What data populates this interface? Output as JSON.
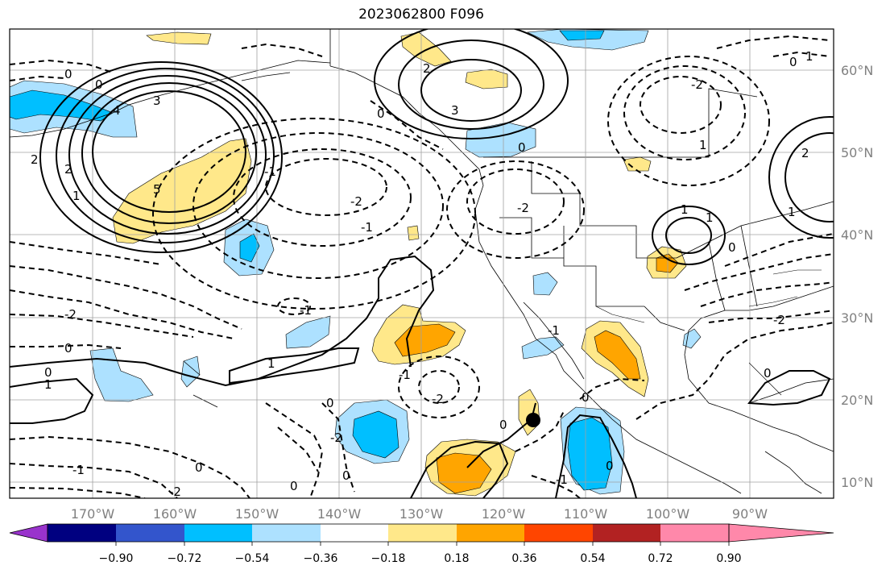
{
  "title": "2023062800 F096",
  "lat_labels": [
    "60°N",
    "50°N",
    "40°N",
    "30°N",
    "20°N",
    "10°N"
  ],
  "lon_labels": [
    "170°W",
    "160°W",
    "150°W",
    "140°W",
    "130°W",
    "120°W",
    "110°W",
    "100°W",
    "90°W"
  ],
  "colorbar": {
    "colors": [
      "#9933cc",
      "#000080",
      "#3355cc",
      "#00bfff",
      "#ade1ff",
      "#ffffff",
      "#ffe88a",
      "#ffa500",
      "#ff4500",
      "#b22222",
      "#ff88aa"
    ],
    "tick_labels": [
      "−0.90",
      "−0.72",
      "−0.54",
      "−0.36",
      "−0.18",
      "0.18",
      "0.36",
      "0.54",
      "0.72",
      "0.90"
    ]
  },
  "contour_labels": [
    "0",
    "0",
    "3",
    "4",
    "5",
    "2",
    "2",
    "1",
    "0",
    "2",
    "3",
    "0",
    "-2",
    "1",
    "0",
    "-2",
    "-2",
    "-1",
    "-2",
    "0",
    "-1",
    "-1",
    "-2",
    "0",
    "1",
    "1",
    "1",
    "0",
    "1",
    "0",
    "-2",
    "0",
    "0",
    "0",
    "-1",
    "0",
    "1",
    "2",
    "1",
    "0",
    "-2",
    "-1",
    "0",
    "-1",
    "-1",
    "-2",
    "0"
  ],
  "marker": {
    "name": "storm-center",
    "color": "#000000"
  }
}
